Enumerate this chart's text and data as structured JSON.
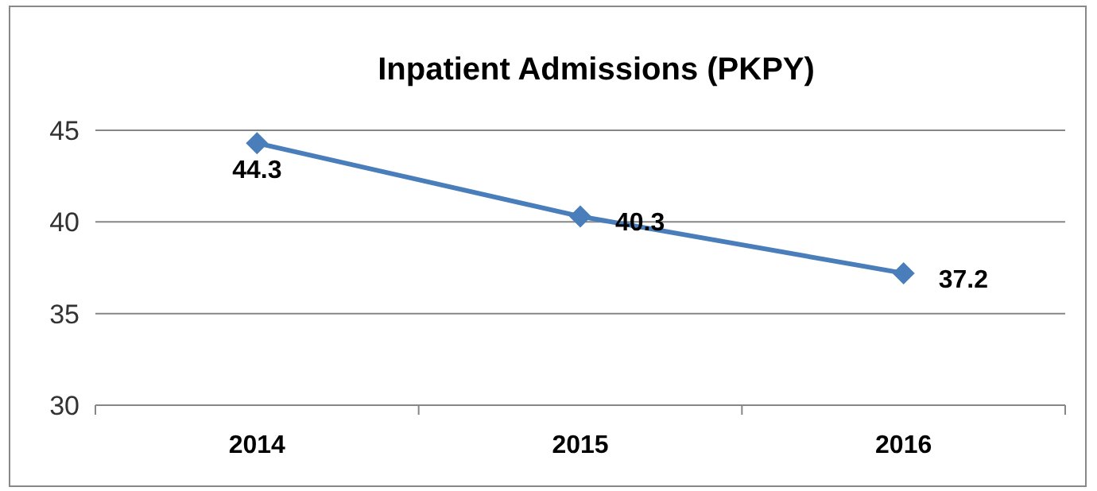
{
  "chart_data": {
    "type": "line",
    "title": "Inpatient Admissions (PKPY)",
    "categories": [
      "2014",
      "2015",
      "2016"
    ],
    "series": [
      {
        "color": "#4a7ebb",
        "values": [
          44.3,
          40.3,
          37.2
        ]
      }
    ],
    "ylim": [
      30,
      45
    ],
    "yticks": [
      30,
      35,
      40,
      45
    ],
    "grid": "y",
    "marker": "diamond",
    "line_style": "solid",
    "data_labels": true
  }
}
